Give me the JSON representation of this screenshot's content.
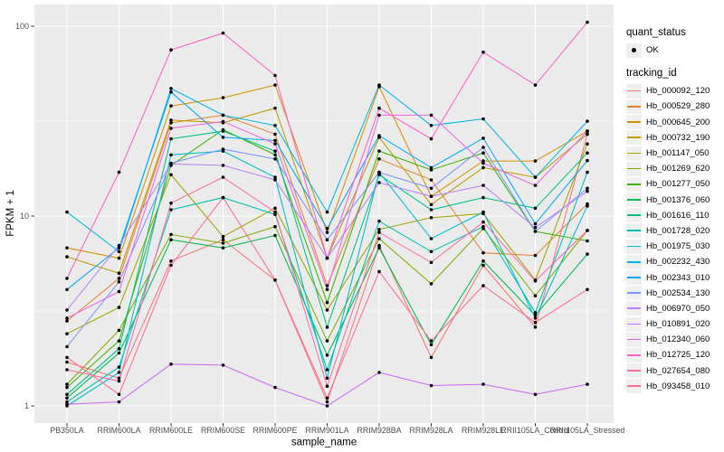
{
  "legend": {
    "quant_status": {
      "title": "quant_status",
      "items": [
        {
          "label": "OK",
          "symbol": "black-point"
        }
      ]
    },
    "tracking_id": {
      "title": "tracking_id"
    }
  },
  "chart_data": {
    "type": "line",
    "title": "",
    "xlabel": "sample_name",
    "ylabel": "FPKM + 1",
    "x_categories": [
      "PB350LA",
      "RRIM600LA",
      "RRIM600LE",
      "RRIM600SE",
      "RRIM600PE",
      "RRIM901LA",
      "RRIM928BA",
      "RRIM928LA",
      "RRIM928LE",
      "RRII105LA_Control",
      "RRII105LA_Stressed"
    ],
    "y_scale": "log10",
    "y_ticks": [
      "1",
      "10",
      "100"
    ],
    "y_tick_values": [
      1,
      10,
      100
    ],
    "y_minor_values": [
      3.162,
      31.62
    ],
    "ylim": [
      0.79,
      126
    ],
    "grid": true,
    "legend_position": "right",
    "panel_bg": "#EBEBEB",
    "grid_color": "#FFFFFF",
    "point_color": "#000000",
    "tick_label_color": "#4D4D4D",
    "series": [
      {
        "name": "Hb_000092_120",
        "color": "#F8766D",
        "values": [
          1.7,
          1.4,
          5.8,
          7.5,
          4.6,
          1.05,
          7.0,
          1.8,
          5.5,
          2.6,
          27
        ]
      },
      {
        "name": "Hb_000529_280",
        "color": "#EA8331",
        "values": [
          2.8,
          4.7,
          31,
          34,
          27,
          4.3,
          20,
          15.5,
          6.4,
          6.2,
          11.6
        ]
      },
      {
        "name": "Hb_000645_200",
        "color": "#D89000",
        "values": [
          6.8,
          6.0,
          38,
          42,
          49,
          8.2,
          48,
          12.7,
          19.5,
          19.5,
          28
        ]
      },
      {
        "name": "Hb_000732_190",
        "color": "#C09B00",
        "values": [
          6.1,
          5.0,
          32,
          31,
          37,
          6.0,
          26,
          11.5,
          18,
          16,
          27
        ]
      },
      {
        "name": "Hb_001147_050",
        "color": "#A3A500",
        "values": [
          2.4,
          3.3,
          16.5,
          7.8,
          11,
          3.2,
          8.5,
          9.8,
          10.3,
          4.6,
          24
        ]
      },
      {
        "name": "Hb_001269_620",
        "color": "#7CAE00",
        "values": [
          1.3,
          2.5,
          8.0,
          7.2,
          8.8,
          2.2,
          7.6,
          4.4,
          8.6,
          3.8,
          8.4
        ]
      },
      {
        "name": "Hb_001277_050",
        "color": "#39B600",
        "values": [
          1.25,
          2.2,
          18.5,
          28.5,
          21,
          3.5,
          22,
          17.5,
          21.5,
          8.3,
          7.4
        ]
      },
      {
        "name": "Hb_001376_060",
        "color": "#00BC51",
        "values": [
          1.1,
          1.9,
          7.5,
          6.8,
          7.9,
          1.85,
          6.8,
          2.1,
          5.8,
          3.0,
          6.3
        ]
      },
      {
        "name": "Hb_001616_110",
        "color": "#00C087",
        "values": [
          1.15,
          2.0,
          25.5,
          28,
          22,
          2.6,
          16.5,
          10.8,
          12.5,
          11,
          21.5
        ]
      },
      {
        "name": "Hb_001728_020",
        "color": "#00C0B2",
        "values": [
          1.05,
          1.6,
          10.8,
          12.5,
          10.2,
          1.55,
          9.4,
          6.5,
          8.8,
          3.1,
          17
        ]
      },
      {
        "name": "Hb_001975_030",
        "color": "#00BDD4",
        "values": [
          1.0,
          1.5,
          21,
          22,
          16,
          1.4,
          17,
          7.6,
          10.5,
          2.9,
          11.3
        ]
      },
      {
        "name": "Hb_002232_430",
        "color": "#00B5EC",
        "values": [
          10.5,
          6.5,
          47,
          34,
          30,
          10.5,
          49,
          30,
          32.5,
          16,
          31.6
        ]
      },
      {
        "name": "Hb_002343_010",
        "color": "#00A6FF",
        "values": [
          4.1,
          6.8,
          45,
          26,
          25,
          8.6,
          26.5,
          18,
          25.7,
          9.1,
          19.6
        ]
      },
      {
        "name": "Hb_002534_130",
        "color": "#7C96FF",
        "values": [
          2.05,
          4.5,
          19,
          22.5,
          20,
          7.5,
          17,
          14,
          23,
          8.3,
          14
        ]
      },
      {
        "name": "Hb_006970_050",
        "color": "#BC81FF",
        "values": [
          3.2,
          7.0,
          18.8,
          18.5,
          15.5,
          6.0,
          15,
          12.7,
          14.5,
          8.7,
          13.5
        ]
      },
      {
        "name": "Hb_010891_020",
        "color": "#D06AFB",
        "values": [
          1.02,
          1.05,
          1.66,
          1.64,
          1.25,
          1.0,
          1.5,
          1.28,
          1.3,
          1.15,
          1.3
        ]
      },
      {
        "name": "Hb_012340_060",
        "color": "#F066EA",
        "values": [
          2.9,
          4.0,
          29,
          31.5,
          24,
          4.1,
          34,
          34,
          19,
          14.5,
          28
        ]
      },
      {
        "name": "Hb_012725_120",
        "color": "#FF61C7",
        "values": [
          4.7,
          17,
          75,
          92,
          55,
          6.0,
          37,
          25.5,
          73,
          49,
          105
        ]
      },
      {
        "name": "Hb_027654_080",
        "color": "#FF6BA6",
        "values": [
          1.55,
          1.35,
          11.7,
          16,
          10.5,
          1.27,
          8.2,
          5.7,
          9.3,
          4.55,
          8.4
        ]
      },
      {
        "name": "Hb_093458_010",
        "color": "#FF6C91",
        "values": [
          1.8,
          1.15,
          5.5,
          12.5,
          4.6,
          1.1,
          5.1,
          2.2,
          4.3,
          2.75,
          4.1
        ]
      }
    ]
  }
}
